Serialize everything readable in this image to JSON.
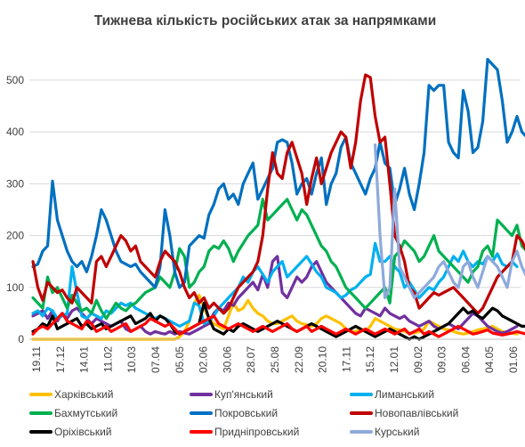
{
  "chart_data": {
    "type": "line",
    "title": "Тижнева кількість російських атак за напрямками",
    "xlabel": "",
    "ylabel": "",
    "ylim": [
      0,
      560
    ],
    "yticks": [
      0,
      100,
      200,
      300,
      400,
      500
    ],
    "grid": "horizontal",
    "legend_position": "bottom",
    "x_tick_labels": [
      "19.11",
      "17.12",
      "14.01",
      "11.02",
      "10.03",
      "07.04",
      "05.05",
      "02.06",
      "30.06",
      "28.07",
      "25.08",
      "22.09",
      "20.10",
      "17.11",
      "15.12",
      "12.01",
      "09.02",
      "09.03",
      "06.04",
      "04.05",
      "01.06"
    ],
    "series": [
      {
        "name": "Харківський",
        "color": "#ffc000",
        "values": [
          0,
          0,
          0,
          0,
          0,
          0,
          0,
          0,
          0,
          0,
          0,
          0,
          0,
          0,
          0,
          0,
          0,
          0,
          0,
          0,
          0,
          0,
          0,
          0,
          0,
          0,
          0,
          0,
          0,
          0,
          5,
          15,
          35,
          70,
          85,
          60,
          40,
          30,
          25,
          20,
          45,
          70,
          55,
          60,
          75,
          60,
          50,
          45,
          35,
          30,
          30,
          35,
          40,
          45,
          35,
          30,
          28,
          25,
          30,
          40,
          45,
          40,
          35,
          30,
          20,
          15,
          15,
          20,
          15,
          25,
          40,
          35,
          30,
          25,
          20,
          18,
          15,
          12,
          12,
          15,
          20,
          35,
          30,
          25,
          20,
          18,
          15,
          12,
          10,
          12,
          15,
          18,
          20,
          22,
          25,
          20,
          15,
          12,
          12,
          10
        ]
      },
      {
        "name": "Куп'янський",
        "color": "#7030a0",
        "values": [
          45,
          50,
          55,
          40,
          55,
          35,
          50,
          40,
          55,
          60,
          50,
          40,
          30,
          40,
          35,
          30,
          25,
          30,
          35,
          20,
          15,
          20,
          25,
          15,
          10,
          15,
          12,
          10,
          15,
          10,
          15,
          12,
          10,
          15,
          20,
          25,
          30,
          50,
          60,
          55,
          70,
          65,
          80,
          90,
          100,
          110,
          95,
          125,
          100,
          150,
          160,
          90,
          80,
          100,
          120,
          110,
          120,
          140,
          150,
          130,
          110,
          100,
          90,
          80,
          70,
          60,
          50,
          45,
          60,
          55,
          50,
          45,
          60,
          50,
          45,
          40,
          45,
          35,
          30,
          25,
          30,
          35,
          25,
          20,
          25,
          30,
          25,
          20,
          30,
          40,
          50,
          45,
          35,
          25,
          20,
          15,
          12,
          15,
          20,
          25
        ]
      },
      {
        "name": "Лиманський",
        "color": "#00b0f0",
        "values": [
          50,
          55,
          45,
          60,
          55,
          40,
          45,
          50,
          140,
          90,
          45,
          40,
          50,
          45,
          40,
          55,
          50,
          60,
          70,
          65,
          70,
          60,
          55,
          50,
          45,
          40,
          45,
          40,
          35,
          30,
          25,
          30,
          35,
          70,
          65,
          30,
          35,
          45,
          60,
          70,
          80,
          90,
          100,
          120,
          110,
          130,
          140,
          125,
          110,
          130,
          140,
          150,
          120,
          130,
          140,
          150,
          160,
          145,
          130,
          120,
          100,
          95,
          90,
          80,
          85,
          95,
          100,
          110,
          120,
          125,
          185,
          150,
          150,
          160,
          140,
          130,
          100,
          110,
          95,
          80,
          90,
          100,
          95,
          110,
          120,
          140,
          160,
          150,
          170,
          150,
          140,
          150,
          145,
          160,
          150,
          165,
          145,
          140,
          150,
          140
        ]
      },
      {
        "name": "Бахмутський",
        "color": "#00b050",
        "values": [
          80,
          70,
          60,
          120,
          90,
          100,
          80,
          60,
          85,
          70,
          55,
          60,
          50,
          75,
          55,
          40,
          55,
          70,
          60,
          55,
          65,
          70,
          80,
          90,
          95,
          100,
          120,
          110,
          100,
          130,
          175,
          160,
          100,
          110,
          130,
          140,
          170,
          180,
          175,
          190,
          175,
          150,
          170,
          185,
          200,
          210,
          220,
          270,
          230,
          240,
          250,
          260,
          270,
          250,
          230,
          250,
          240,
          220,
          200,
          180,
          170,
          150,
          140,
          120,
          100,
          90,
          80,
          70,
          60,
          70,
          80,
          90,
          100,
          70,
          160,
          170,
          190,
          180,
          170,
          150,
          160,
          180,
          200,
          170,
          160,
          150,
          140,
          130,
          120,
          110,
          130,
          140,
          170,
          180,
          160,
          230,
          220,
          210,
          200,
          220,
          180,
          170,
          210,
          190,
          170,
          160,
          175,
          165,
          170,
          175
        ]
      },
      {
        "name": "Покровський",
        "color": "#0070c0",
        "values": [
          140,
          145,
          170,
          180,
          305,
          230,
          200,
          170,
          150,
          140,
          150,
          130,
          160,
          200,
          250,
          230,
          200,
          170,
          150,
          145,
          140,
          145,
          130,
          120,
          110,
          100,
          140,
          250,
          200,
          130,
          100,
          110,
          180,
          190,
          200,
          195,
          240,
          260,
          290,
          300,
          270,
          280,
          260,
          300,
          320,
          340,
          270,
          290,
          310,
          330,
          380,
          385,
          380,
          340,
          280,
          300,
          310,
          280,
          320,
          350,
          260,
          300,
          320,
          370,
          390,
          340,
          320,
          300,
          280,
          310,
          330,
          380,
          340,
          330,
          260,
          290,
          330,
          280,
          250,
          300,
          360,
          490,
          480,
          490,
          490,
          380,
          360,
          350,
          480,
          440,
          360,
          370,
          420,
          540,
          530,
          520,
          460,
          380,
          400,
          430,
          400,
          390,
          420,
          430
        ]
      },
      {
        "name": "Новопавлівський",
        "color": "#c00000",
        "values": [
          150,
          100,
          75,
          110,
          100,
          90,
          95,
          80,
          70,
          100,
          90,
          80,
          70,
          150,
          160,
          140,
          160,
          180,
          200,
          190,
          170,
          180,
          150,
          140,
          130,
          120,
          150,
          170,
          160,
          150,
          130,
          100,
          80,
          90,
          70,
          80,
          60,
          70,
          60,
          50,
          60,
          80,
          100,
          110,
          120,
          130,
          150,
          200,
          290,
          360,
          320,
          310,
          360,
          380,
          350,
          320,
          260,
          310,
          350,
          300,
          330,
          360,
          380,
          400,
          390,
          330,
          380,
          460,
          510,
          505,
          430,
          380,
          390,
          300,
          200,
          180,
          150,
          100,
          90,
          60,
          70,
          80,
          90,
          85,
          90,
          95,
          100,
          90,
          80,
          70,
          60,
          50,
          60,
          80,
          100,
          120,
          130,
          140,
          150,
          200,
          190,
          170,
          160,
          155,
          150,
          150
        ]
      },
      {
        "name": "Оріхівський",
        "color": "#000000",
        "values": [
          15,
          20,
          30,
          25,
          45,
          20,
          25,
          30,
          35,
          40,
          25,
          30,
          20,
          25,
          30,
          20,
          25,
          30,
          35,
          40,
          45,
          30,
          35,
          40,
          50,
          35,
          45,
          40,
          30,
          15,
          10,
          15,
          20,
          25,
          30,
          70,
          40,
          20,
          15,
          10,
          20,
          15,
          25,
          30,
          25,
          20,
          15,
          20,
          25,
          30,
          35,
          30,
          25,
          20,
          15,
          20,
          25,
          30,
          25,
          20,
          15,
          10,
          5,
          10,
          15,
          20,
          25,
          20,
          15,
          10,
          5,
          10,
          15,
          20,
          15,
          10,
          5,
          0,
          5,
          0,
          5,
          10,
          15,
          20,
          25,
          30,
          40,
          50,
          60,
          50,
          55,
          45,
          40,
          50,
          60,
          55,
          45,
          40,
          35,
          30,
          25,
          25,
          40,
          35,
          30,
          25
        ]
      },
      {
        "name": "Придніпровський",
        "color": "#ff0000",
        "values": [
          10,
          20,
          25,
          20,
          30,
          40,
          50,
          35,
          30,
          25,
          20,
          35,
          30,
          15,
          20,
          25,
          15,
          20,
          25,
          30,
          15,
          20,
          25,
          30,
          40,
          35,
          30,
          25,
          30,
          20,
          10,
          15,
          20,
          25,
          30,
          35,
          40,
          45,
          30,
          25,
          20,
          25,
          30,
          25,
          20,
          15,
          20,
          25,
          20,
          15,
          20,
          25,
          30,
          20,
          15,
          20,
          25,
          15,
          20,
          25,
          20,
          15,
          10,
          15,
          20,
          15,
          10,
          15,
          20,
          15,
          10,
          15,
          20,
          15,
          10,
          15,
          20,
          10,
          15,
          20,
          10,
          15,
          10,
          5,
          10,
          15,
          20,
          25,
          20,
          15,
          10,
          12,
          15,
          18,
          12,
          10,
          8,
          10,
          12,
          15,
          12,
          10,
          8,
          10,
          12
        ]
      },
      {
        "name": "Курський",
        "color": "#8ea9db",
        "values": [
          null,
          null,
          null,
          null,
          null,
          null,
          null,
          null,
          null,
          null,
          null,
          null,
          null,
          null,
          null,
          null,
          null,
          null,
          null,
          null,
          null,
          null,
          null,
          null,
          null,
          null,
          null,
          null,
          null,
          null,
          null,
          null,
          null,
          null,
          null,
          null,
          null,
          null,
          null,
          null,
          null,
          null,
          null,
          null,
          null,
          null,
          null,
          null,
          null,
          null,
          null,
          null,
          null,
          null,
          null,
          null,
          null,
          null,
          null,
          null,
          null,
          null,
          null,
          null,
          null,
          null,
          null,
          null,
          null,
          null,
          375,
          200,
          80,
          100,
          290,
          140,
          120,
          100,
          80,
          90,
          100,
          110,
          120,
          140,
          150,
          130,
          110,
          100,
          140,
          150,
          120,
          100,
          130,
          160,
          150,
          140,
          120,
          100,
          150,
          170,
          140,
          120,
          200,
          190
        ]
      }
    ]
  }
}
